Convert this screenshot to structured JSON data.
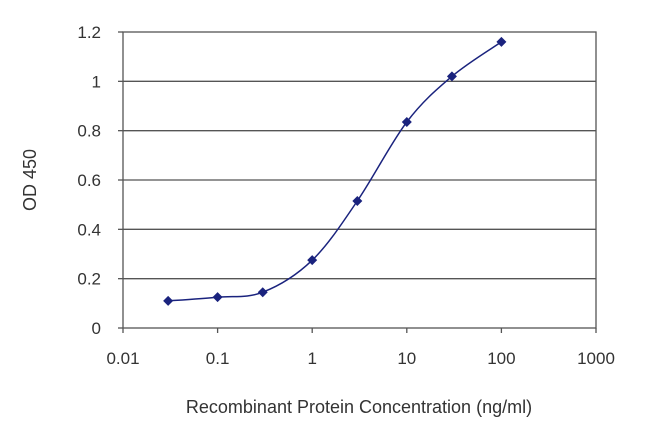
{
  "chart_data": {
    "type": "line",
    "xlabel": "Recombinant Protein Concentration (ng/ml)",
    "ylabel": "OD 450",
    "xscale": "log",
    "xlim": [
      0.01,
      1000
    ],
    "ylim": [
      0,
      1.2
    ],
    "xticks": [
      "0.01",
      "0.1",
      "1",
      "10",
      "100",
      "1000"
    ],
    "xtick_values": [
      0.01,
      0.1,
      1,
      10,
      100,
      1000
    ],
    "yticks": [
      "0",
      "0.2",
      "0.4",
      "0.6",
      "0.8",
      "1",
      "1.2"
    ],
    "ytick_values": [
      0,
      0.2,
      0.4,
      0.6,
      0.8,
      1,
      1.2
    ],
    "grid": "horizontal",
    "series_color": "#1a237e",
    "marker": "diamond",
    "series": [
      {
        "x": [
          0.03,
          0.1,
          0.3,
          1,
          3,
          10,
          30,
          100
        ],
        "y": [
          0.11,
          0.125,
          0.145,
          0.275,
          0.515,
          0.835,
          1.02,
          1.16
        ]
      }
    ]
  }
}
